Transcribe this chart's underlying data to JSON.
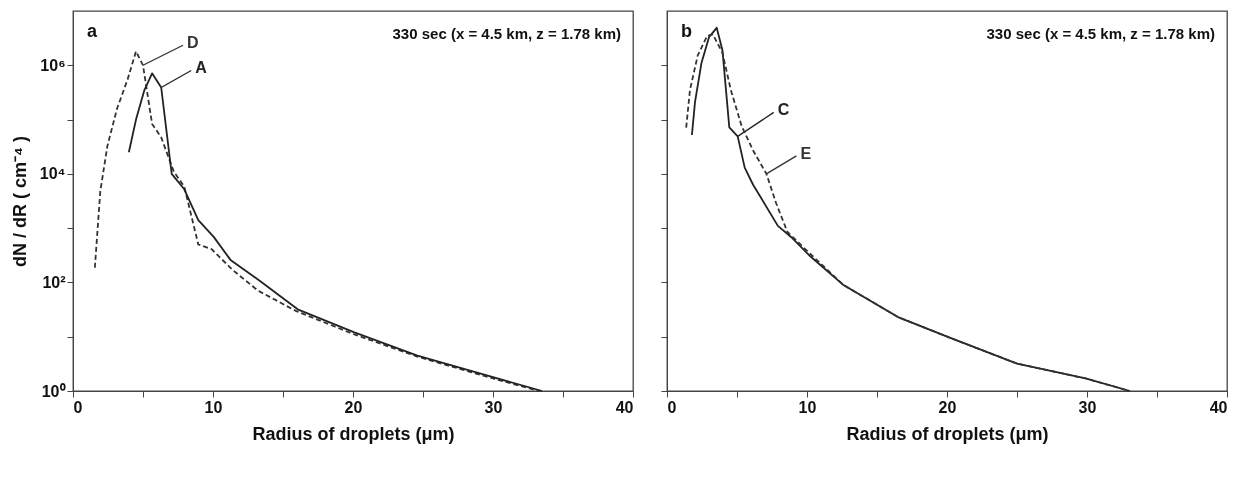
{
  "chart_data": [
    {
      "type": "line",
      "xlabel": "Radius of droplets  (μm)",
      "ylabel": "dN / dR ( cm⁻⁴ )",
      "log": "y",
      "xlim": [
        0,
        40
      ],
      "ylim": [
        1,
        10000000
      ],
      "xticks": [
        0,
        {
          "value": 5,
          "label": null
        },
        10,
        {
          "value": 15,
          "label": null
        },
        20,
        {
          "value": 25,
          "label": null
        },
        30,
        {
          "value": 35,
          "label": null
        },
        40
      ],
      "yticks": [
        {
          "value": 1,
          "label": "10⁰"
        },
        {
          "value": 10,
          "label": null
        },
        {
          "value": 100,
          "label": "10²"
        },
        {
          "value": 1000,
          "label": null
        },
        {
          "value": 10000,
          "label": "10⁴"
        },
        {
          "value": 100000,
          "label": null
        },
        {
          "value": 1000000,
          "label": "10⁶"
        }
      ],
      "annotations": [
        "a",
        "330 sec  (x = 4.5 km, z = 1.78 km)"
      ],
      "series": [
        {
          "name": "D",
          "color": "#333333",
          "line_style": "dashed",
          "x": [
            1.56,
            1.95,
            2.46,
            3.15,
            3.9,
            4.5,
            5.0,
            5.65,
            6.3,
            7.2,
            7.95,
            8.95,
            9.9,
            11.4,
            13.2,
            15.9,
            20.1,
            24.6,
            30.0,
            33.3
          ],
          "values": [
            186,
            4800,
            33000,
            160000,
            550000,
            1800000,
            1000000,
            83000,
            47000,
            11000,
            5800,
            500,
            410,
            170,
            71,
            30,
            11,
            4.3,
            1.7,
            1
          ]
        },
        {
          "name": "A",
          "color": "#222222",
          "line_style": "solid",
          "x": [
            3.99,
            4.5,
            5.1,
            5.65,
            6.3,
            7.05,
            7.95,
            8.95,
            10.05,
            11.25,
            13.5,
            16.05,
            20.1,
            24.6,
            30.0,
            33.5
          ],
          "values": [
            25000,
            100000,
            350000,
            710000,
            390000,
            10000,
            5200,
            1400,
            690,
            260,
            100,
            32,
            12,
            4.5,
            1.8,
            1
          ]
        }
      ]
    },
    {
      "type": "line",
      "xlabel": "Radius of droplets  (μm)",
      "log": "y",
      "xlim": [
        0,
        40
      ],
      "ylim": [
        1,
        10000000
      ],
      "tick_labels": "x",
      "xticks": [
        0,
        {
          "value": 5,
          "label": null
        },
        10,
        {
          "value": 15,
          "label": null
        },
        20,
        {
          "value": 25,
          "label": null
        },
        30,
        {
          "value": 35,
          "label": null
        },
        40
      ],
      "yticks": [
        {
          "value": 1,
          "label": null
        },
        {
          "value": 10,
          "label": null
        },
        {
          "value": 100,
          "label": null
        },
        {
          "value": 1000,
          "label": null
        },
        {
          "value": 10000,
          "label": null
        },
        {
          "value": 100000,
          "label": null
        },
        {
          "value": 1000000,
          "label": null
        }
      ],
      "annotations": [
        "b",
        "330 sec  (x = 4.5 km, z = 1.78 km)"
      ],
      "series": [
        {
          "name": "C",
          "color": "#222222",
          "line_style": "solid",
          "x": [
            1.78,
            2.0,
            2.46,
            3.0,
            3.55,
            3.96,
            4.45,
            5.05,
            5.55,
            6.15,
            7.92,
            8.88,
            10.25,
            12.57,
            16.5,
            20.1,
            25.0,
            29.9,
            33.06
          ],
          "values": [
            52000,
            210000,
            1100000,
            3300000,
            4900000,
            1900000,
            72000,
            49000,
            13000,
            6300,
            1100,
            680,
            300,
            91,
            23,
            9.8,
            3.2,
            1.7,
            1
          ]
        },
        {
          "name": "E",
          "color": "#333333",
          "line_style": "dashed",
          "x": [
            1.37,
            1.64,
            2.19,
            2.87,
            3.28,
            3.96,
            4.56,
            5.33,
            6.15,
            7.1,
            7.79,
            8.6,
            9.97,
            12.57,
            16.5,
            20.1,
            25.0,
            29.9,
            33.06
          ],
          "values": [
            71000,
            350000,
            1500000,
            3500000,
            3700000,
            1700000,
            350000,
            76000,
            27000,
            10000,
            2900,
            850,
            390,
            91,
            23,
            9.8,
            3.2,
            1.7,
            1
          ]
        }
      ]
    }
  ]
}
